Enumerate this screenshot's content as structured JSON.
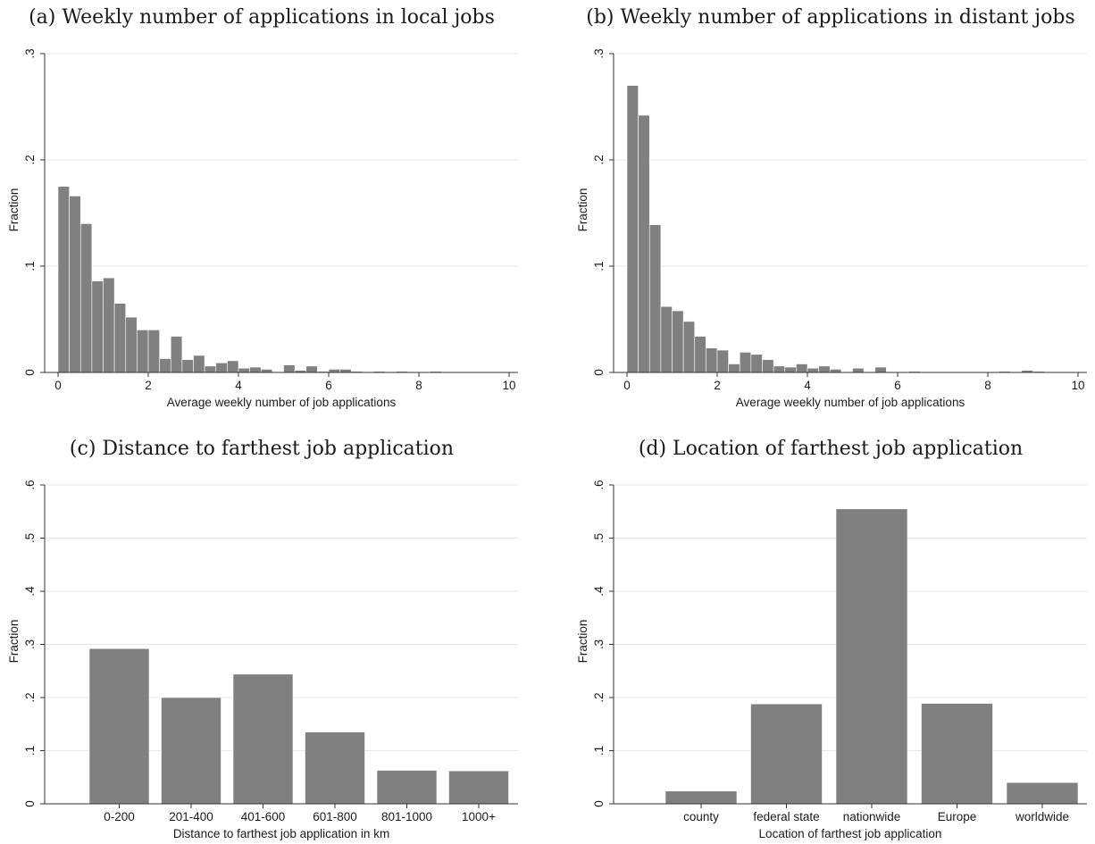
{
  "chart_data": [
    {
      "type": "bar",
      "title": "(a) Weekly number of applications in local jobs",
      "xlabel": "Average weekly number of job applications",
      "ylabel": "Fraction",
      "xlim": [
        0,
        10
      ],
      "ylim": [
        0,
        0.3
      ],
      "xticks": [
        "0",
        "2",
        "4",
        "6",
        "8",
        "10"
      ],
      "yticks": [
        "0",
        ".1",
        ".2",
        ".3"
      ],
      "bin_width": 0.25,
      "bin_start": 0,
      "values": [
        0.175,
        0.166,
        0.14,
        0.086,
        0.089,
        0.065,
        0.052,
        0.04,
        0.04,
        0.013,
        0.034,
        0.012,
        0.016,
        0.006,
        0.009,
        0.011,
        0.004,
        0.005,
        0.003,
        0.0,
        0.007,
        0.002,
        0.006,
        0.001,
        0.003,
        0.003,
        0.001,
        0.0,
        0.001,
        0.0,
        0.001,
        0.0,
        0.0,
        0.001,
        0.0,
        0.0,
        0.0,
        0.0,
        0.0,
        0.0
      ],
      "grid": true
    },
    {
      "type": "bar",
      "title": "(b) Weekly number of applications in distant jobs",
      "xlabel": "Average weekly number of job applications",
      "ylabel": "Fraction",
      "xlim": [
        0,
        10
      ],
      "ylim": [
        0,
        0.3
      ],
      "xticks": [
        "0",
        "2",
        "4",
        "6",
        "8",
        "10"
      ],
      "yticks": [
        "0",
        ".1",
        ".2",
        ".3"
      ],
      "bin_width": 0.25,
      "bin_start": 0,
      "values": [
        0.27,
        0.242,
        0.139,
        0.062,
        0.058,
        0.048,
        0.034,
        0.023,
        0.021,
        0.008,
        0.019,
        0.017,
        0.012,
        0.006,
        0.005,
        0.008,
        0.004,
        0.006,
        0.003,
        0.0,
        0.004,
        0.0,
        0.005,
        0.0,
        0.0,
        0.001,
        0.0,
        0.0,
        0.0,
        0.0,
        0.0,
        0.0,
        0.0,
        0.001,
        0.0,
        0.002,
        0.001,
        0.0,
        0.0,
        0.0
      ],
      "grid": true
    },
    {
      "type": "bar",
      "title": "(c) Distance to farthest job application",
      "xlabel": "Distance to farthest job application in km",
      "ylabel": "Fraction",
      "ylim": [
        0,
        0.6
      ],
      "yticks": [
        "0",
        ".1",
        ".2",
        ".3",
        ".4",
        ".5",
        ".6"
      ],
      "categories": [
        "0-200",
        "201-400",
        "401-600",
        "601-800",
        "801-1000",
        "1000+"
      ],
      "values": [
        0.292,
        0.2,
        0.244,
        0.135,
        0.063,
        0.062
      ],
      "grid": true
    },
    {
      "type": "bar",
      "title": "(d) Location of farthest job application",
      "xlabel": "Location of farthest job application",
      "ylabel": "Fraction",
      "ylim": [
        0,
        0.6
      ],
      "yticks": [
        "0",
        ".1",
        ".2",
        ".3",
        ".4",
        ".5",
        ".6"
      ],
      "categories": [
        "county",
        "federal state",
        "nationwide",
        "Europe",
        "worldwide"
      ],
      "values": [
        0.024,
        0.188,
        0.555,
        0.189,
        0.04
      ],
      "grid": true
    }
  ]
}
